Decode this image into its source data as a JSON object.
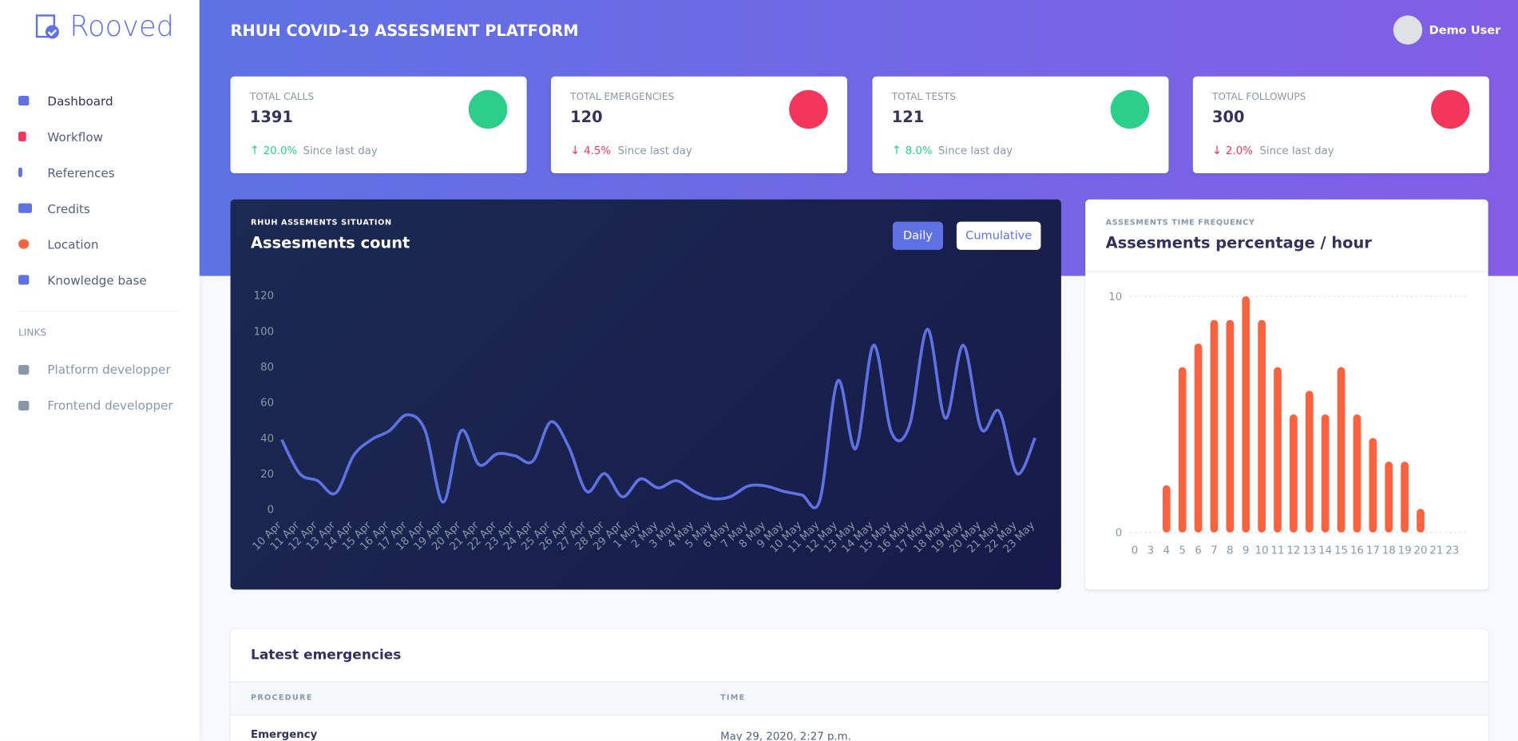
{
  "sidebar": {
    "brand": "Rooved",
    "nav": [
      "Dashboard",
      "Workflow",
      "References",
      "Credits",
      "Location",
      "Knowledge base"
    ],
    "links_heading": "LINKS",
    "links": [
      "Platform developper",
      "Frontend developper"
    ]
  },
  "header": {
    "title": "RHUH COVID-19 ASSESMENT PLATFORM",
    "user": "Demo User"
  },
  "stats": [
    {
      "label": "TOTAL CALLS",
      "value": "1391",
      "change": "20.0%",
      "note": "Since last day"
    },
    {
      "label": "TOTAL EMERGENCIES",
      "value": "120",
      "change": "4.5%",
      "note": "Since last day"
    },
    {
      "label": "TOTAL TESTS",
      "value": "121",
      "change": "8.0%",
      "note": "Since last day"
    },
    {
      "label": "TOTAL FOLLOWUPS",
      "value": "300",
      "change": "2.0%",
      "note": "Since last day"
    }
  ],
  "chart_data": [
    {
      "type": "line",
      "subtitle": "RHUH ASSEMENTS SITUATION",
      "title": "Assesments count",
      "buttons": [
        "Daily",
        "Cumulative"
      ],
      "color": "#5e72e4",
      "categories": [
        "10 Apr",
        "11 Apr",
        "12 Apr",
        "13 Apr",
        "14 Apr",
        "15 Apr",
        "16 Apr",
        "17 Apr",
        "18 Apr",
        "19 Apr",
        "20 Apr",
        "21 Apr",
        "22 Apr",
        "23 Apr",
        "24 Apr",
        "25 Apr",
        "26 Apr",
        "27 Apr",
        "28 Apr",
        "29 Apr",
        "1 May",
        "2 May",
        "3 May",
        "4 May",
        "5 May",
        "6 May",
        "7 May",
        "8 May",
        "9 May",
        "10 May",
        "11 May",
        "12 May",
        "13 May",
        "14 May",
        "15 May",
        "16 May",
        "17 May",
        "18 May",
        "19 May",
        "20 May",
        "21 May",
        "22 May",
        "23 May"
      ],
      "values": [
        39,
        20,
        16,
        9,
        30,
        39,
        44,
        53,
        44,
        4,
        44,
        25,
        31,
        30,
        27,
        49,
        35,
        10,
        20,
        7,
        17,
        12,
        16,
        10,
        6,
        7,
        13,
        13,
        10,
        8,
        5,
        72,
        34,
        92,
        43,
        47,
        101,
        51,
        92,
        45,
        55,
        20,
        40
      ],
      "ylim": [
        0,
        120
      ],
      "yticks": [
        0,
        20,
        40,
        60,
        80,
        100,
        120
      ]
    },
    {
      "type": "bar",
      "subtitle": "ASSESMENTS TIME FREQUENCY",
      "title": "Assesments percentage / hour",
      "color": "#fb6340",
      "categories": [
        "0",
        "3",
        "4",
        "5",
        "6",
        "7",
        "8",
        "9",
        "10",
        "11",
        "12",
        "13",
        "14",
        "15",
        "16",
        "17",
        "18",
        "19",
        "20",
        "21",
        "23"
      ],
      "values": [
        0,
        0,
        2,
        7,
        8,
        9,
        9,
        10,
        9,
        7,
        5,
        6,
        5,
        7,
        5,
        4,
        3,
        3,
        1,
        0,
        0
      ],
      "ylim": [
        0,
        10
      ],
      "yticks": [
        0,
        10
      ],
      "grid": true
    }
  ],
  "table": {
    "title": "Latest emergencies",
    "columns": [
      "PROCEDURE",
      "TIME"
    ],
    "rows": [
      [
        "Emergency",
        "May 29, 2020, 2:27 p.m."
      ]
    ]
  }
}
